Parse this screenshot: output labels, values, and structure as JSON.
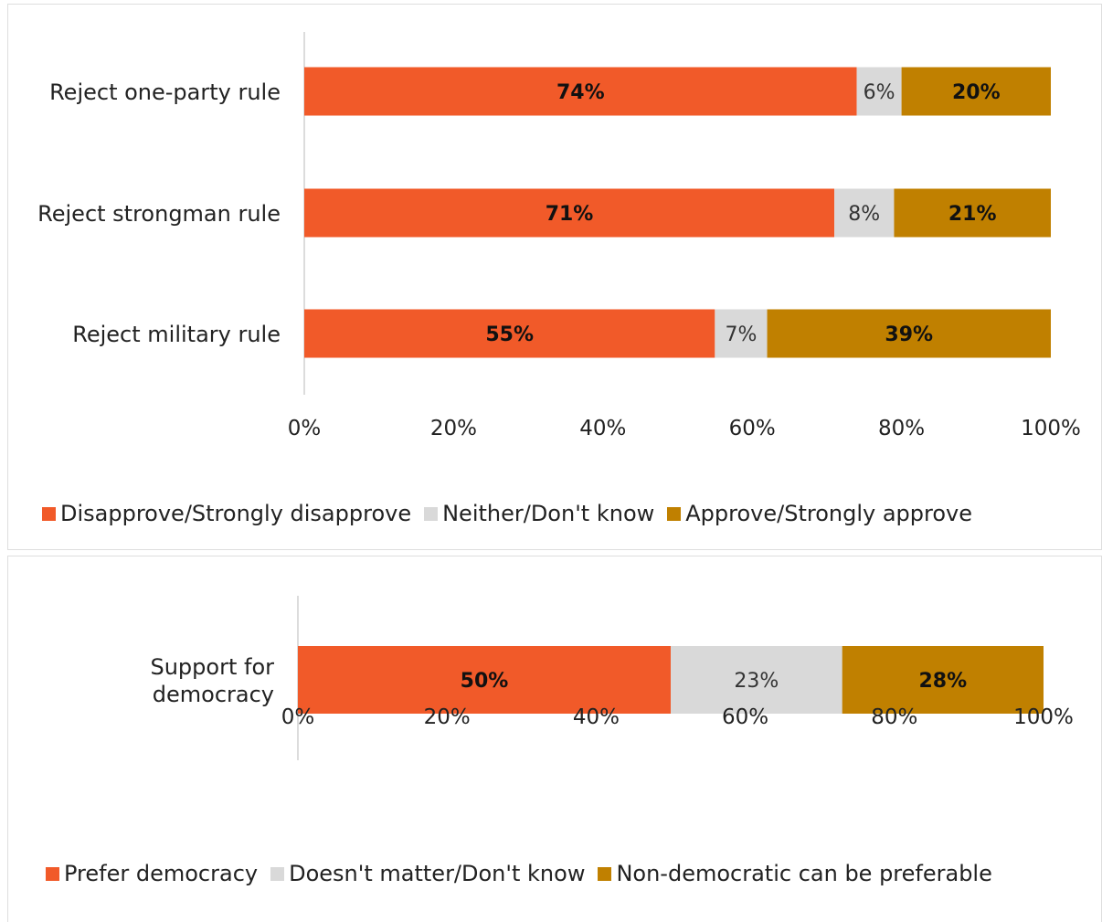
{
  "colors": {
    "disapprove": "#f15a29",
    "neither": "#d9d9d9",
    "approve": "#c08000",
    "axis": "#d0d0d0"
  },
  "chart_data": [
    {
      "type": "bar",
      "orientation": "horizontal",
      "stacked": true,
      "categories": [
        "Reject one-party rule",
        "Reject strongman rule",
        "Reject military rule"
      ],
      "series": [
        {
          "name": "Disapprove/Strongly disapprove",
          "values": [
            74,
            71,
            55
          ],
          "labels": [
            "74%",
            "71%",
            "55%"
          ]
        },
        {
          "name": "Neither/Don't know",
          "values": [
            6,
            8,
            7
          ],
          "labels": [
            "6%",
            "8%",
            "7%"
          ]
        },
        {
          "name": "Approve/Strongly approve",
          "values": [
            20,
            21,
            39
          ],
          "labels": [
            "20%",
            "21%",
            "39%"
          ]
        }
      ],
      "xlim": [
        0,
        100
      ],
      "x_ticks": [
        "0%",
        "20%",
        "40%",
        "60%",
        "80%",
        "100%"
      ],
      "legend_position": "bottom",
      "grid": false
    },
    {
      "type": "bar",
      "orientation": "horizontal",
      "stacked": true,
      "categories": [
        "Support for democracy"
      ],
      "category_lines": [
        [
          "Support for",
          "democracy"
        ]
      ],
      "series": [
        {
          "name": "Prefer democracy",
          "values": [
            50
          ],
          "labels": [
            "50%"
          ]
        },
        {
          "name": "Doesn't matter/Don't know",
          "values": [
            23
          ],
          "labels": [
            "23%"
          ]
        },
        {
          "name": "Non-democratic can be preferable",
          "values": [
            28
          ],
          "labels": [
            "28%"
          ]
        }
      ],
      "xlim": [
        0,
        100
      ],
      "x_ticks": [
        "0%",
        "20%",
        "40%",
        "60%",
        "80%",
        "100%"
      ],
      "legend_position": "bottom",
      "grid": false
    }
  ]
}
